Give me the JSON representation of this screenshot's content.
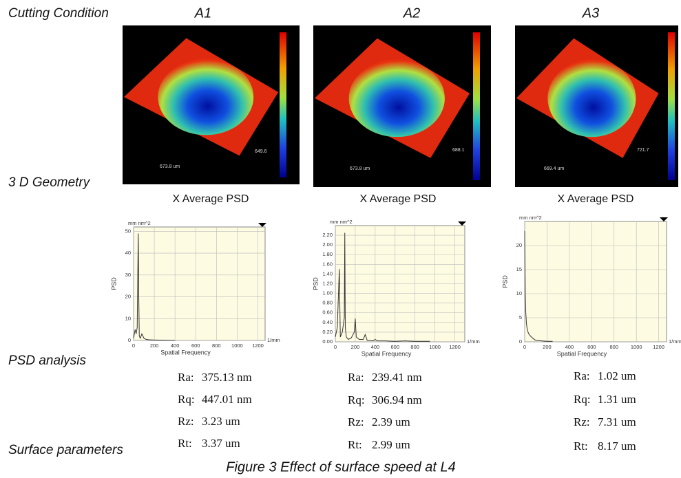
{
  "row_labels": [
    "Cutting Condition",
    "3 D Geometry",
    "PSD analysis",
    "Surface parameters"
  ],
  "columns": [
    {
      "title": "A1",
      "dims": [
        "673.8 um",
        "649.6"
      ],
      "params": [
        [
          "Ra:",
          "375.13 nm"
        ],
        [
          "Rq:",
          "447.01 nm"
        ],
        [
          "Rz:",
          "3.23 um"
        ],
        [
          "Rt:",
          "3.37 um"
        ]
      ]
    },
    {
      "title": "A2",
      "dims": [
        "673.8 um",
        "688.1"
      ],
      "params": [
        [
          "Ra:",
          "239.41 nm"
        ],
        [
          "Rq:",
          "306.94 nm"
        ],
        [
          "Rz:",
          "2.39 um"
        ],
        [
          "Rt:",
          "2.99 um"
        ]
      ]
    },
    {
      "title": "A3",
      "dims": [
        "669.4 um",
        "721.7"
      ],
      "params": [
        [
          "Ra:",
          "1.02 um"
        ],
        [
          "Rq:",
          "1.31 um"
        ],
        [
          "Rz:",
          "7.31 um"
        ],
        [
          "Rt:",
          "8.17 um"
        ]
      ]
    }
  ],
  "chart_data": [
    {
      "type": "line",
      "title": "X Average PSD",
      "y_unit": "mm nm^2",
      "x_unit": "1/mm",
      "ylabel": "PSD",
      "xlabel": "Spatial Frequency",
      "x": [
        0,
        15,
        25,
        35,
        45,
        50,
        55,
        65,
        80,
        90,
        100,
        120,
        150,
        200,
        300,
        400
      ],
      "series": [
        {
          "color": "#333333",
          "values": [
            1,
            5,
            3,
            6,
            49,
            20,
            2,
            1,
            3,
            2,
            1,
            0.5,
            0.3,
            0.2,
            0.1,
            0
          ]
        }
      ],
      "xlim": [
        0,
        1270
      ],
      "xticks": [
        0,
        200,
        400,
        600,
        800,
        1000,
        1200
      ],
      "ylim": [
        0,
        52
      ],
      "yticks": [
        0,
        10,
        20,
        30,
        40,
        50
      ],
      "grid": true
    },
    {
      "type": "line",
      "title": "X Average PSD",
      "y_unit": "mm nm^2",
      "x_unit": "1/mm",
      "ylabel": "PSD",
      "xlabel": "Spatial Frequency",
      "x": [
        0,
        20,
        40,
        50,
        70,
        90,
        95,
        100,
        110,
        130,
        160,
        190,
        200,
        210,
        240,
        280,
        300,
        320,
        380,
        400,
        420,
        500,
        600,
        700,
        800,
        900,
        950
      ],
      "series": [
        {
          "color": "#333333",
          "values": [
            0.1,
            0.3,
            1.5,
            0.1,
            0.2,
            0.5,
            2.25,
            0.3,
            0.1,
            0.05,
            0.08,
            0.2,
            0.48,
            0.1,
            0.05,
            0.05,
            0.15,
            0.03,
            0.02,
            0.05,
            0.02,
            0.02,
            0.01,
            0.02,
            0.01,
            0.01,
            0.01
          ]
        }
      ],
      "xlim": [
        0,
        1300
      ],
      "xticks": [
        0,
        200,
        400,
        600,
        800,
        1000,
        1200
      ],
      "ylim": [
        0,
        2.4
      ],
      "yticks": [
        {
          "value": 0,
          "label": "0.00"
        },
        {
          "value": 0.2,
          "label": "0.20"
        },
        {
          "value": 0.4,
          "label": "0.40"
        },
        {
          "value": 0.6,
          "label": "0.60"
        },
        {
          "value": 0.8,
          "label": "0.80"
        },
        {
          "value": 1,
          "label": "1.00"
        },
        {
          "value": 1.2,
          "label": "1.20"
        },
        {
          "value": 1.4,
          "label": "1.40"
        },
        {
          "value": 1.6,
          "label": "1.60"
        },
        {
          "value": 1.8,
          "label": "1.80"
        },
        {
          "value": 2,
          "label": "2.00"
        },
        {
          "value": 2.2,
          "label": "2.20"
        }
      ],
      "grid": true
    },
    {
      "type": "line",
      "title": "X Average PSD",
      "y_unit": "mm nm^2",
      "x_unit": "1/mm",
      "ylabel": "PSD",
      "xlabel": "Spatial Frequency",
      "x": [
        0,
        5,
        10,
        15,
        20,
        30,
        40,
        60,
        80,
        100,
        150,
        200,
        250
      ],
      "series": [
        {
          "color": "#333333",
          "values": [
            23,
            10,
            6,
            4,
            3,
            2,
            1.5,
            1,
            0.6,
            0.3,
            0.2,
            0.1,
            0.1
          ]
        }
      ],
      "xlim": [
        0,
        1270
      ],
      "xticks": [
        0,
        200,
        400,
        600,
        800,
        1000,
        1200
      ],
      "ylim": [
        0,
        25
      ],
      "yticks": [
        0,
        5,
        10,
        15,
        20
      ],
      "grid": true
    }
  ],
  "caption": "Figure 3 Effect of surface speed at L4"
}
